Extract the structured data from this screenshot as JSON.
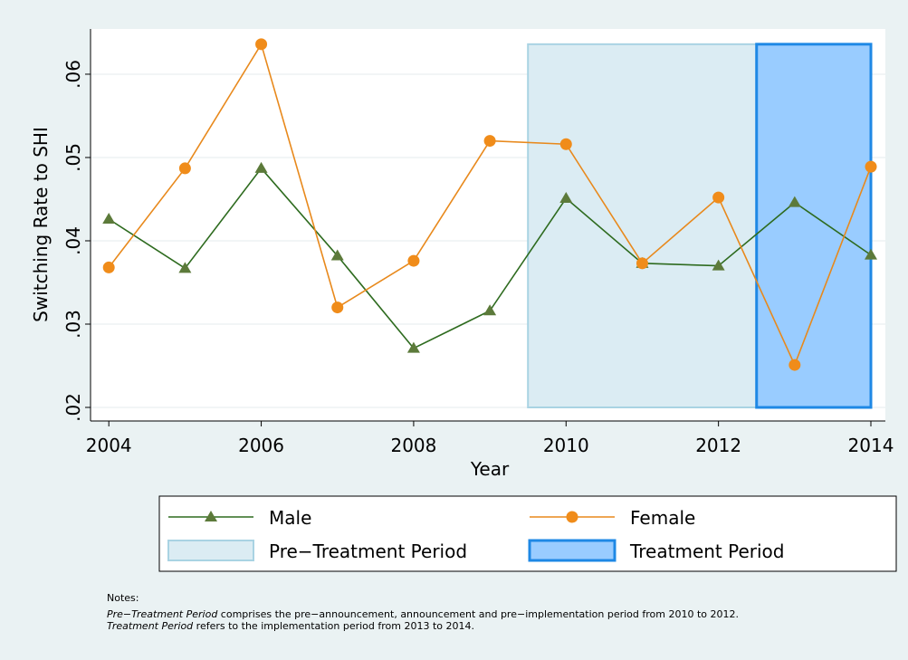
{
  "chart_data": {
    "type": "line",
    "x_label": "Year",
    "y_label": "Switching Rate to SHI",
    "x": [
      2004,
      2005,
      2006,
      2007,
      2008,
      2009,
      2010,
      2011,
      2012,
      2013,
      2014
    ],
    "series": [
      {
        "name": "Male",
        "color": "#2e6b1f",
        "marker_color": "#5c7a3a",
        "marker": "triangle",
        "values": [
          0.0426,
          0.0367,
          0.0487,
          0.0382,
          0.0271,
          0.0316,
          0.0451,
          0.0373,
          0.037,
          0.0446,
          0.0383
        ]
      },
      {
        "name": "Female",
        "color": "#e8891c",
        "marker_color": "#f08c1a",
        "marker": "circle",
        "values": [
          0.0368,
          0.0487,
          0.0636,
          0.032,
          0.0376,
          0.052,
          0.0516,
          0.0373,
          0.0452,
          0.0251,
          0.0489
        ]
      }
    ],
    "shaded": [
      {
        "name": "Pre−Treatment Period",
        "color": "#dbecf3",
        "edge_color": "#a9d3e3",
        "x": [
          2009.5,
          2012.5
        ],
        "y": [
          0.02,
          0.0636
        ]
      },
      {
        "name": "Treatment Period",
        "color": "#99ccff",
        "edge_color": "#1e88e5",
        "x": [
          2012.5,
          2014
        ],
        "y": [
          0.02,
          0.0636
        ]
      }
    ],
    "xlim": [
      2003.76,
      2014.19
    ],
    "ylim": [
      0.01837,
      0.06543
    ],
    "xticks": [
      2004,
      2006,
      2008,
      2010,
      2012,
      2014
    ],
    "yticks": [
      {
        "value": 0.02,
        "label": ".02"
      },
      {
        "value": 0.03,
        "label": ".03"
      },
      {
        "value": 0.04,
        "label": ".04"
      },
      {
        "value": 0.05,
        "label": ".05"
      },
      {
        "value": 0.06,
        "label": ".06"
      }
    ],
    "grid": true,
    "legend": "bottom",
    "notes": {
      "heading": "Notes:",
      "lines": [
        {
          "italic": "Pre−Treatment Period",
          "text": " comprises the pre−announcement, announcement and pre−implementation period from 2010 to 2012."
        },
        {
          "italic": "Treatment Period",
          "text": " refers to the implementation period from 2013 to 2014."
        }
      ]
    }
  }
}
